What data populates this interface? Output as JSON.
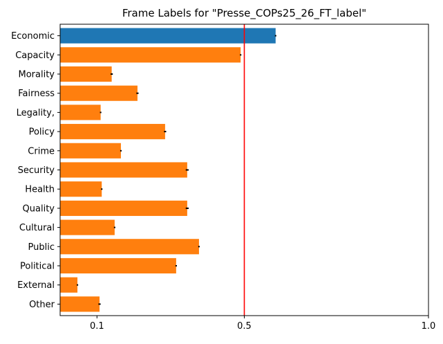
{
  "chart_data": {
    "type": "bar",
    "orientation": "horizontal",
    "title": "Frame Labels for \"Presse_COPs25_26_FT_label\"",
    "xlabel": "",
    "ylabel": "",
    "categories": [
      "Economic",
      "Capacity",
      "Morality",
      "Fairness",
      "Legality,",
      "Policy",
      "Crime",
      "Security",
      "Health",
      "Quality",
      "Cultural",
      "Public",
      "Political",
      "External",
      "Other"
    ],
    "values": [
      0.585,
      0.49,
      0.14,
      0.21,
      0.11,
      0.285,
      0.165,
      0.345,
      0.113,
      0.345,
      0.148,
      0.377,
      0.315,
      0.047,
      0.107
    ],
    "error": [
      0.002,
      0.002,
      0.003,
      0.003,
      0.002,
      0.003,
      0.002,
      0.004,
      0.002,
      0.004,
      0.002,
      0.002,
      0.002,
      0.002,
      0.003
    ],
    "highlight_index": 0,
    "colors": {
      "highlight": "#1f77b4",
      "bars": "#ff7f0e",
      "error_bar": "#000000",
      "reference_line": "#ff0000"
    },
    "reference_line": 0.5,
    "xlim": [
      0.0,
      1.0
    ],
    "xticks": [
      0.1,
      0.5,
      1.0
    ],
    "xtick_labels": [
      "0.1",
      "0.5",
      "1.0"
    ],
    "grid": false,
    "legend": "none"
  }
}
